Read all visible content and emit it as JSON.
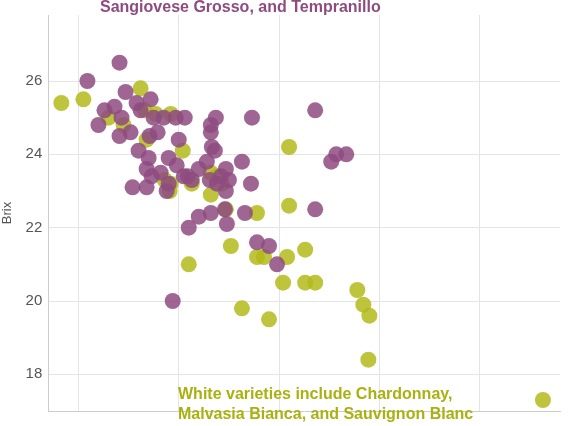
{
  "chart_data": {
    "type": "scatter",
    "y_label": "Brix",
    "annotations": [
      {
        "text": "Sangiovese Grosso, and Tempranillo",
        "color": "#8e4b80"
      },
      {
        "text": "White varieties include Chardonnay, Malvasia Bianca, and Sauvignon Blanc",
        "color": "#a9b10f"
      }
    ],
    "series": [
      {
        "color": "#8e4b80",
        "x": [
          0.09,
          0.41,
          0.2,
          0.26,
          0.36,
          0.43,
          0.47,
          0.58,
          0.62,
          0.72,
          0.75,
          0.41,
          0.52,
          0.6,
          0.71,
          0.79,
          0.85,
          0.97,
          1.06,
          1.37,
          0.7,
          0.68,
          0.73,
          0.82,
          0.9,
          0.98,
          1.0,
          1.05,
          1.09,
          1.13,
          1.2,
          1.28,
          1.32,
          1.33,
          1.36,
          1.31,
          1.38,
          1.47,
          1.5,
          1.63,
          0.54,
          0.68,
          0.88,
          1.1,
          1.2,
          1.32,
          1.47,
          1.46,
          1.48,
          1.66,
          1.73,
          1.72,
          1.78,
          1.9,
          1.98,
          2.36,
          2.36,
          2.52,
          2.57,
          2.67,
          0.94,
          1.32,
          0.9,
          1.42
        ],
        "values": [
          26.0,
          26.5,
          24.8,
          25.2,
          25.3,
          25.0,
          25.7,
          25.4,
          25.2,
          25.5,
          25.0,
          24.5,
          24.6,
          24.1,
          24.5,
          24.6,
          25.0,
          25.0,
          25.0,
          25.0,
          23.9,
          23.6,
          23.4,
          23.5,
          23.9,
          23.7,
          24.4,
          23.4,
          23.4,
          23.3,
          23.6,
          23.8,
          24.6,
          24.2,
          24.1,
          23.3,
          23.2,
          23.6,
          23.3,
          23.8,
          23.1,
          23.1,
          23.0,
          22.0,
          22.3,
          22.4,
          23.0,
          22.5,
          22.1,
          22.4,
          25.0,
          23.2,
          21.6,
          21.5,
          21.0,
          25.2,
          22.5,
          23.8,
          24.0,
          24.0,
          20.0,
          24.8,
          23.2,
          23.4
        ]
      },
      {
        "color": "#b3ba1a",
        "x": [
          -0.17,
          0.05,
          0.3,
          0.45,
          0.62,
          0.66,
          0.77,
          0.92,
          0.68,
          1.04,
          0.86,
          0.91,
          1.13,
          1.32,
          1.38,
          1.43,
          1.47,
          1.78,
          2.1,
          2.1,
          1.52,
          1.78,
          1.85,
          2.08,
          2.26,
          2.04,
          2.26,
          2.36,
          1.1,
          1.63,
          1.9,
          2.78,
          2.84,
          2.9,
          2.89,
          4.63,
          1.32,
          0.92
        ],
        "values": [
          25.4,
          25.5,
          25.0,
          24.8,
          25.8,
          25.2,
          25.1,
          25.1,
          24.4,
          24.1,
          23.3,
          23.0,
          23.2,
          22.9,
          23.4,
          23.2,
          22.5,
          22.4,
          24.2,
          22.6,
          21.5,
          21.2,
          21.2,
          21.2,
          21.4,
          20.5,
          20.5,
          20.5,
          21.0,
          19.8,
          19.5,
          20.3,
          19.9,
          19.6,
          18.4,
          17.3,
          23.5,
          23.2
        ]
      }
    ],
    "xlim": [
      -0.3,
      4.8
    ],
    "xticks": [
      0,
      1,
      2,
      3,
      4
    ],
    "ylim": [
      17,
      27.8
    ],
    "yticks": [
      18,
      20,
      22,
      24,
      26
    ],
    "grid": true,
    "tick_labels": "y"
  }
}
